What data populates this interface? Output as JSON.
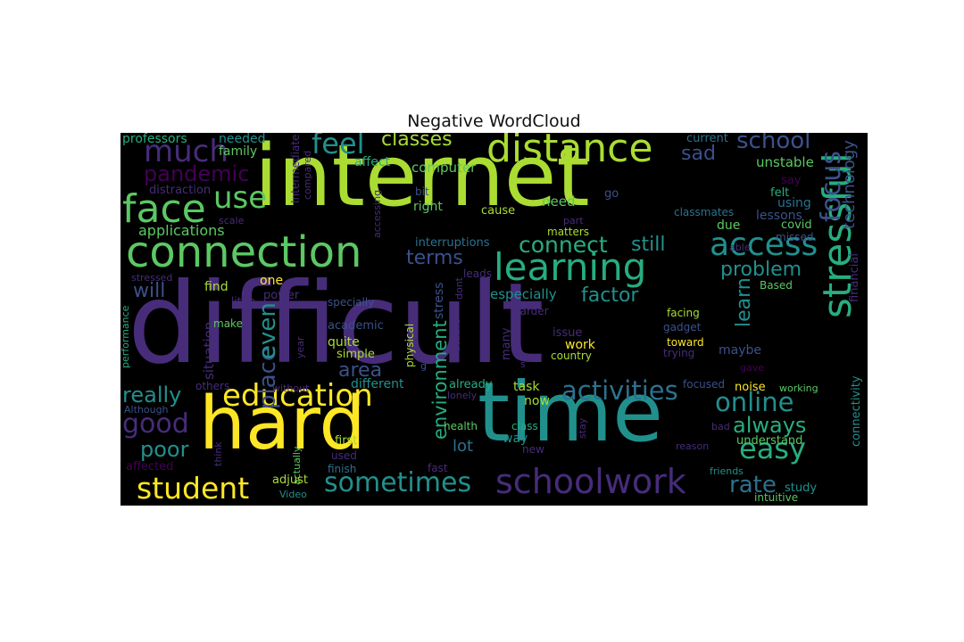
{
  "figure": {
    "title": "Negative WordCloud"
  },
  "palette": {
    "background": "#000000",
    "colors": [
      "#440154",
      "#472c7a",
      "#3b518b",
      "#2c718e",
      "#21908d",
      "#27ad81",
      "#5cc863",
      "#aadc32",
      "#fde725"
    ]
  },
  "words": [
    {
      "text": "difficult",
      "color": "#472c7a"
    },
    {
      "text": "internet",
      "color": "#aadc32"
    },
    {
      "text": "time",
      "color": "#21908d"
    },
    {
      "text": "hard",
      "color": "#fde725"
    },
    {
      "text": "connection",
      "color": "#5cc863"
    },
    {
      "text": "distance",
      "color": "#aadc32"
    },
    {
      "text": "learning",
      "color": "#27ad81"
    },
    {
      "text": "stressful",
      "color": "#27ad81"
    },
    {
      "text": "face",
      "color": "#5cc863"
    },
    {
      "text": "education",
      "color": "#fde725"
    },
    {
      "text": "schoolwork",
      "color": "#472c7a"
    },
    {
      "text": "access",
      "color": "#21908d"
    },
    {
      "text": "much",
      "color": "#472c7a"
    },
    {
      "text": "feel",
      "color": "#21908d"
    },
    {
      "text": "focus",
      "color": "#3b518b"
    },
    {
      "text": "student",
      "color": "#fde725"
    },
    {
      "text": "sometimes",
      "color": "#21908d"
    },
    {
      "text": "easy",
      "color": "#27ad81"
    },
    {
      "text": "good",
      "color": "#472c7a"
    },
    {
      "text": "use",
      "color": "#5cc863"
    },
    {
      "text": "activities",
      "color": "#2c718e"
    },
    {
      "text": "online",
      "color": "#21908d"
    },
    {
      "text": "classes",
      "color": "#aadc32"
    },
    {
      "text": "school",
      "color": "#3b518b"
    },
    {
      "text": "pandemic",
      "color": "#440154"
    },
    {
      "text": "connect",
      "color": "#27ad81"
    },
    {
      "text": "place",
      "color": "#3b518b"
    },
    {
      "text": "even",
      "color": "#21908d"
    },
    {
      "text": "environment",
      "color": "#27ad81"
    },
    {
      "text": "really",
      "color": "#21908d"
    },
    {
      "text": "poor",
      "color": "#21908d"
    },
    {
      "text": "always",
      "color": "#27ad81"
    },
    {
      "text": "rate",
      "color": "#2c718e"
    },
    {
      "text": "technology",
      "color": "#3b518b"
    },
    {
      "text": "still",
      "color": "#21908d"
    },
    {
      "text": "problem",
      "color": "#21908d"
    },
    {
      "text": "learn",
      "color": "#21908d"
    },
    {
      "text": "terms",
      "color": "#3b518b"
    },
    {
      "text": "area",
      "color": "#3b518b"
    },
    {
      "text": "factor",
      "color": "#21908d"
    },
    {
      "text": "applications",
      "color": "#5cc863"
    },
    {
      "text": "will",
      "color": "#3b518b"
    },
    {
      "text": "sad",
      "color": "#3b518b"
    },
    {
      "text": "lot",
      "color": "#2c718e"
    },
    {
      "text": "professors",
      "color": "#27ad81"
    },
    {
      "text": "needed",
      "color": "#21908d"
    },
    {
      "text": "family",
      "color": "#5cc863"
    },
    {
      "text": "Intermediate",
      "color": "#472c7a"
    },
    {
      "text": "compared",
      "color": "#472c7a"
    },
    {
      "text": "affect",
      "color": "#27ad81"
    },
    {
      "text": "computer",
      "color": "#5cc863"
    },
    {
      "text": "current",
      "color": "#2c718e"
    },
    {
      "text": "unstable",
      "color": "#5cc863"
    },
    {
      "text": "say",
      "color": "#440154"
    },
    {
      "text": "felt",
      "color": "#27ad81"
    },
    {
      "text": "using",
      "color": "#2c718e"
    },
    {
      "text": "lessons",
      "color": "#3b518b"
    },
    {
      "text": "classmates",
      "color": "#2c718e"
    },
    {
      "text": "covid",
      "color": "#5cc863"
    },
    {
      "text": "missed",
      "color": "#3b518b"
    },
    {
      "text": "able",
      "color": "#472c7a"
    },
    {
      "text": "due",
      "color": "#5cc863"
    },
    {
      "text": "distraction",
      "color": "#472c7a"
    },
    {
      "text": "scale",
      "color": "#472c7a"
    },
    {
      "text": "accessing",
      "color": "#472c7a"
    },
    {
      "text": "bit",
      "color": "#3b518b"
    },
    {
      "text": "right",
      "color": "#5cc863"
    },
    {
      "text": "cause",
      "color": "#aadc32"
    },
    {
      "text": "need",
      "color": "#5cc863"
    },
    {
      "text": "go",
      "color": "#3b518b"
    },
    {
      "text": "part",
      "color": "#472c7a"
    },
    {
      "text": "matters",
      "color": "#aadc32"
    },
    {
      "text": "interruptions",
      "color": "#2c718e"
    },
    {
      "text": "leads",
      "color": "#472c7a"
    },
    {
      "text": "dont",
      "color": "#472c7a"
    },
    {
      "text": "stress",
      "color": "#3b518b"
    },
    {
      "text": "especially",
      "color": "#21908d"
    },
    {
      "text": "harder",
      "color": "#472c7a"
    },
    {
      "text": "stressed",
      "color": "#472c7a"
    },
    {
      "text": "find",
      "color": "#aadc32"
    },
    {
      "text": "one",
      "color": "#fde725"
    },
    {
      "text": "power",
      "color": "#472c7a"
    },
    {
      "text": "little",
      "color": "#472c7a"
    },
    {
      "text": "specially",
      "color": "#3b518b"
    },
    {
      "text": "performance",
      "color": "#27ad81"
    },
    {
      "text": "make",
      "color": "#5cc863"
    },
    {
      "text": "situation",
      "color": "#472c7a"
    },
    {
      "text": "academic",
      "color": "#3b518b"
    },
    {
      "text": "quite",
      "color": "#aadc32"
    },
    {
      "text": "simple",
      "color": "#aadc32"
    },
    {
      "text": "physical",
      "color": "#aadc32"
    },
    {
      "text": "stable",
      "color": "#472c7a"
    },
    {
      "text": "many",
      "color": "#472c7a"
    },
    {
      "text": "issue",
      "color": "#472c7a"
    },
    {
      "text": "work",
      "color": "#fde725"
    },
    {
      "text": "country",
      "color": "#aadc32"
    },
    {
      "text": "s",
      "color": "#472c7a"
    },
    {
      "text": "g",
      "color": "#3b518b"
    },
    {
      "text": "facing",
      "color": "#aadc32"
    },
    {
      "text": "gadget",
      "color": "#3b518b"
    },
    {
      "text": "toward",
      "color": "#fde725"
    },
    {
      "text": "trying",
      "color": "#472c7a"
    },
    {
      "text": "maybe",
      "color": "#3b518b"
    },
    {
      "text": "gave",
      "color": "#440154"
    },
    {
      "text": "Based",
      "color": "#5cc863"
    },
    {
      "text": "financial",
      "color": "#472c7a"
    },
    {
      "text": "year",
      "color": "#472c7a"
    },
    {
      "text": "others",
      "color": "#472c7a"
    },
    {
      "text": "without",
      "color": "#472c7a"
    },
    {
      "text": "different",
      "color": "#21908d"
    },
    {
      "text": "already",
      "color": "#27ad81"
    },
    {
      "text": "lonely",
      "color": "#472c7a"
    },
    {
      "text": "task",
      "color": "#aadc32"
    },
    {
      "text": "focused",
      "color": "#3b518b"
    },
    {
      "text": "noise",
      "color": "#fde725"
    },
    {
      "text": "working",
      "color": "#5cc863"
    },
    {
      "text": "connectivity",
      "color": "#21908d"
    },
    {
      "text": "now",
      "color": "#aadc32"
    },
    {
      "text": "Although",
      "color": "#3b518b"
    },
    {
      "text": "health",
      "color": "#5cc863"
    },
    {
      "text": "class",
      "color": "#27ad81"
    },
    {
      "text": "stay",
      "color": "#472c7a"
    },
    {
      "text": "way",
      "color": "#21908d"
    },
    {
      "text": "bad",
      "color": "#472c7a"
    },
    {
      "text": "understand",
      "color": "#5cc863"
    },
    {
      "text": "reason",
      "color": "#472c7a"
    },
    {
      "text": "affected",
      "color": "#440154"
    },
    {
      "text": "think",
      "color": "#472c7a"
    },
    {
      "text": "actually",
      "color": "#5cc863"
    },
    {
      "text": "first",
      "color": "#aadc32"
    },
    {
      "text": "used",
      "color": "#472c7a"
    },
    {
      "text": "new",
      "color": "#472c7a"
    },
    {
      "text": "finish",
      "color": "#2c718e"
    },
    {
      "text": "fast",
      "color": "#472c7a"
    },
    {
      "text": "friends",
      "color": "#21908d"
    },
    {
      "text": "adjust",
      "color": "#aadc32"
    },
    {
      "text": "study",
      "color": "#21908d"
    },
    {
      "text": "Video",
      "color": "#21908d"
    },
    {
      "text": "intuitive",
      "color": "#5cc863"
    }
  ]
}
